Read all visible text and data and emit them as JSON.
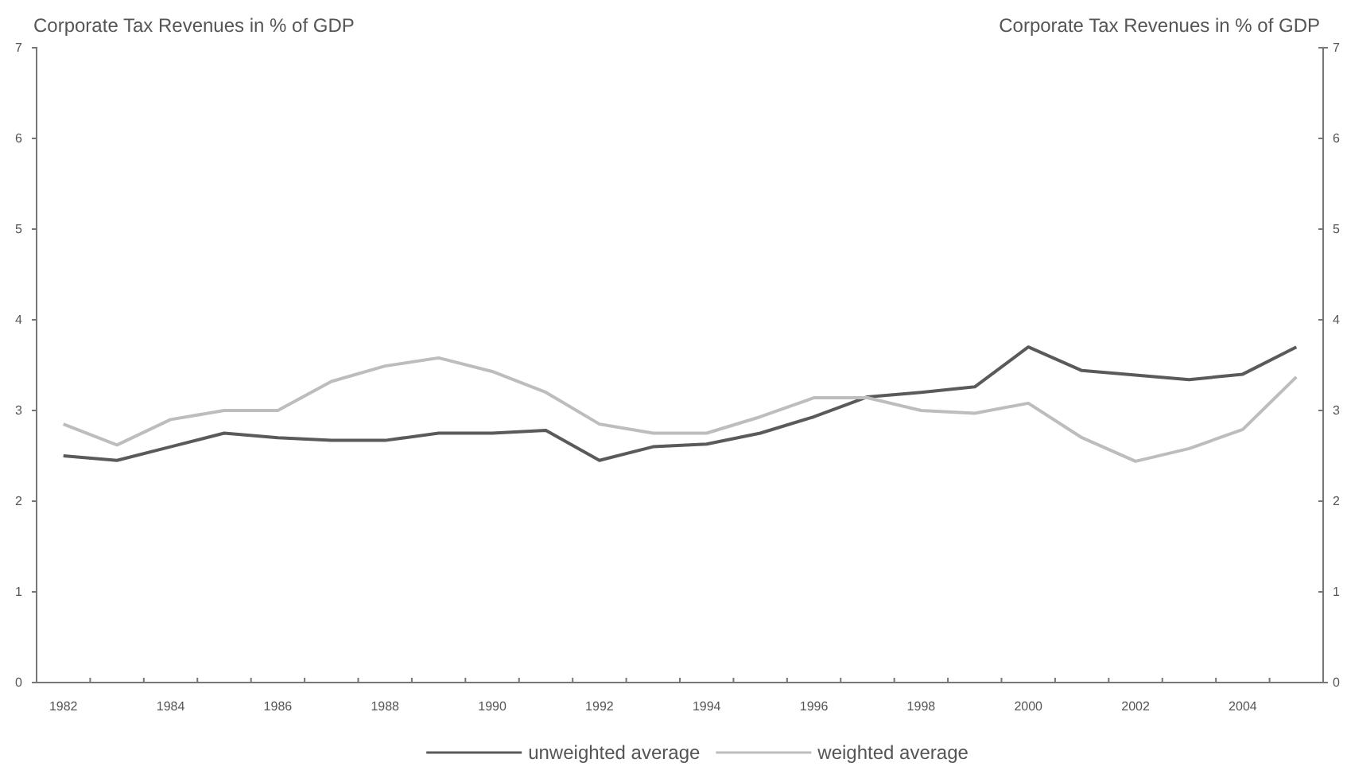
{
  "chart_data": {
    "type": "line",
    "ylabel": "Corporate Tax Revenues in % of GDP",
    "y2label": "Corporate Tax Revenues in % of GDP",
    "categories": [
      "1982",
      null,
      "1984",
      null,
      "1986",
      null,
      "1988",
      null,
      "1990",
      null,
      "1992",
      null,
      "1994",
      null,
      "1996",
      null,
      "1998",
      null,
      "2000",
      null,
      "2002",
      null,
      "2004",
      null
    ],
    "series": [
      {
        "name": "unweighted average",
        "color": "#5a5a5a",
        "values": [
          2.5,
          2.45,
          2.6,
          2.75,
          2.7,
          2.67,
          2.67,
          2.75,
          2.75,
          2.78,
          2.45,
          2.6,
          2.63,
          2.75,
          2.93,
          3.15,
          3.2,
          3.26,
          3.7,
          3.44,
          3.39,
          3.34,
          3.4,
          3.7
        ]
      },
      {
        "name": "weighted average",
        "color": "#bdbdbd",
        "values": [
          2.85,
          2.62,
          2.9,
          3.0,
          3.0,
          3.32,
          3.49,
          3.58,
          3.43,
          3.2,
          2.85,
          2.75,
          2.75,
          2.93,
          3.14,
          3.14,
          3.0,
          2.97,
          3.08,
          2.7,
          2.44,
          2.58,
          2.79,
          3.37
        ]
      }
    ],
    "ylim": [
      0,
      7
    ],
    "yticks": [
      0,
      1,
      2,
      3,
      4,
      5,
      6,
      7
    ],
    "y2lim": [
      0,
      7
    ],
    "y2ticks": [
      0,
      1,
      2,
      3,
      4,
      5,
      6,
      7
    ],
    "grid": false,
    "legend": "bottom",
    "marker": "none",
    "line_style": "solid"
  }
}
